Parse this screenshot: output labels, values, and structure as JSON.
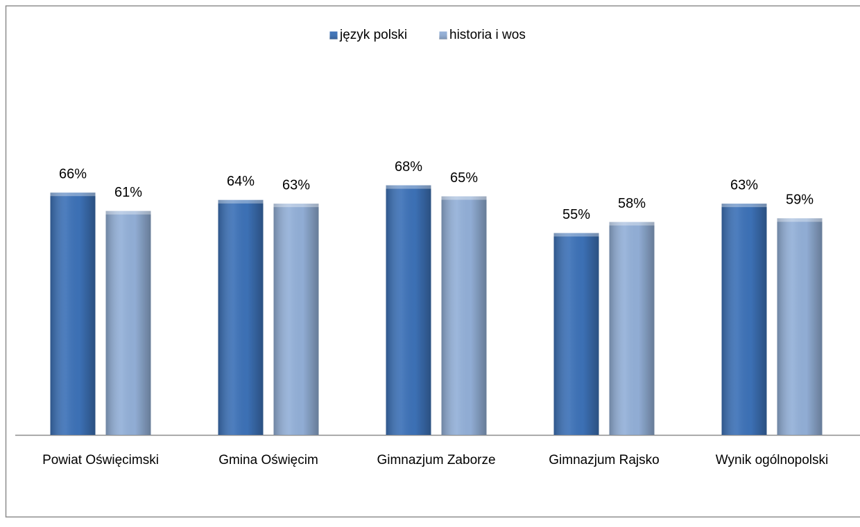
{
  "chart_data": {
    "type": "bar",
    "categories": [
      "Powiat Oświęcimski",
      "Gmina Oświęcim",
      "Gimnazjum Zaborze",
      "Gimnazjum Rajsko",
      "Wynik ogólnopolski"
    ],
    "series": [
      {
        "name": "język polski",
        "color": "#3d72b8",
        "values": [
          66,
          64,
          68,
          55,
          63
        ],
        "value_labels": [
          "66%",
          "64%",
          "68%",
          "55%",
          "63%"
        ]
      },
      {
        "name": "historia i wos",
        "color": "#93b0d8",
        "values": [
          61,
          63,
          65,
          58,
          59
        ],
        "value_labels": [
          "61%",
          "63%",
          "65%",
          "58%",
          "59%"
        ]
      }
    ],
    "ylim": [
      0,
      100
    ],
    "legend": "top"
  }
}
